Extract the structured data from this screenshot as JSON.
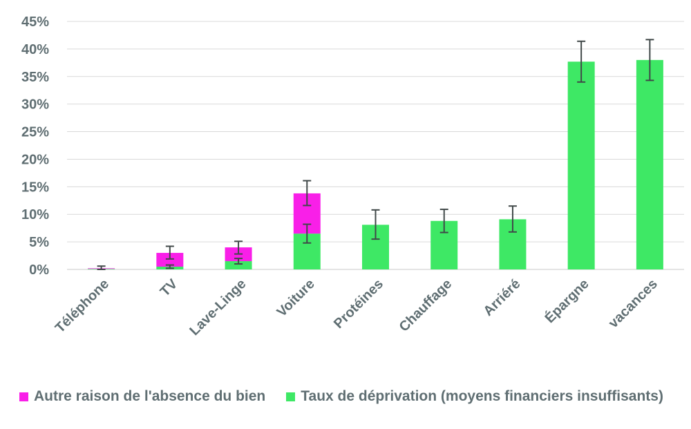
{
  "chart_data": {
    "type": "bar",
    "stacked": true,
    "categories": [
      "Téléphone",
      "TV",
      "Lave-Linge",
      "Voiture",
      "Protéines",
      "Chauffage",
      "Arriéré",
      "Épargne",
      "vacances"
    ],
    "series": [
      {
        "name": "Taux de déprivation (moyens financiers insuffisants)",
        "color": "#3ee865",
        "values": [
          0.1,
          0.5,
          1.5,
          6.5,
          8.1,
          8.8,
          9.1,
          37.7,
          38.0
        ],
        "error": [
          [
            0.0,
            0.2
          ],
          [
            0.2,
            0.8
          ],
          [
            1.0,
            2.0
          ],
          [
            4.8,
            8.2
          ],
          [
            5.5,
            10.8
          ],
          [
            6.7,
            10.9
          ],
          [
            6.8,
            11.5
          ],
          [
            34.0,
            41.4
          ],
          [
            34.3,
            41.7
          ]
        ]
      },
      {
        "name": "Autre raison de l'absence du bien",
        "color": "#f91fe8",
        "values": [
          0.1,
          2.5,
          2.5,
          7.3,
          0,
          0,
          0,
          0,
          0
        ],
        "error_total": [
          [
            0.0,
            0.6
          ],
          [
            1.9,
            4.2
          ],
          [
            2.8,
            5.1
          ],
          [
            11.6,
            16.1
          ],
          null,
          null,
          null,
          null,
          null
        ]
      }
    ],
    "ylim": [
      0,
      45
    ],
    "yticks": [
      "0%",
      "5%",
      "10%",
      "15%",
      "20%",
      "25%",
      "30%",
      "35%",
      "40%",
      "45%"
    ],
    "grid": true,
    "legend_position": "bottom",
    "legend_order": [
      "Autre raison de l'absence du bien",
      "Taux de déprivation (moyens financiers insuffisants)"
    ]
  }
}
